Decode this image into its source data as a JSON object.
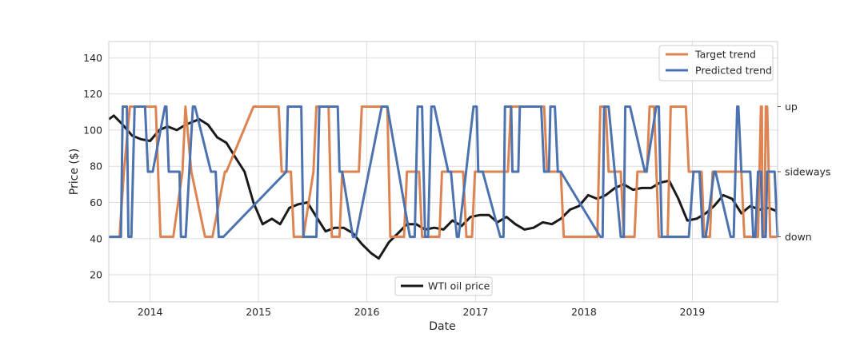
{
  "chart_data": {
    "type": "line",
    "title": "",
    "xlabel": "Date",
    "ylabel": "Price ($)",
    "xlim": [
      "2013-08-15",
      "2019-10-15"
    ],
    "ylim": [
      5,
      149
    ],
    "x_ticks": [
      "2014",
      "2015",
      "2016",
      "2017",
      "2018",
      "2019"
    ],
    "y_ticks": [
      20,
      40,
      60,
      80,
      100,
      120,
      140
    ],
    "secondary_y_ticks": [
      {
        "label": "up",
        "value": 113
      },
      {
        "label": "sideways",
        "value": 77
      },
      {
        "label": "down",
        "value": 41
      }
    ],
    "trend_levels": {
      "down": 41,
      "sideways": 77,
      "up": 113
    },
    "grid": true,
    "legends": [
      {
        "placement": "top-right",
        "entries": [
          "Target trend",
          "Predicted trend"
        ]
      },
      {
        "placement": "bottom-center",
        "entries": [
          "WTI oil price"
        ]
      }
    ],
    "colors": {
      "target": "#dd8452",
      "predicted": "#4c72b0",
      "price": "#1a1a1a"
    },
    "series": [
      {
        "name": "WTI oil price",
        "x": [
          "2013-08-15",
          "2013-09-01",
          "2013-10-01",
          "2013-11-01",
          "2013-12-01",
          "2014-01-01",
          "2014-02-01",
          "2014-03-01",
          "2014-04-01",
          "2014-05-01",
          "2014-06-15",
          "2014-07-15",
          "2014-08-15",
          "2014-09-15",
          "2014-10-15",
          "2014-11-15",
          "2014-12-15",
          "2015-01-15",
          "2015-02-15",
          "2015-03-15",
          "2015-04-15",
          "2015-05-15",
          "2015-06-15",
          "2015-07-15",
          "2015-08-15",
          "2015-09-15",
          "2015-10-15",
          "2015-11-15",
          "2015-12-15",
          "2016-01-15",
          "2016-02-10",
          "2016-03-15",
          "2016-04-15",
          "2016-05-15",
          "2016-06-15",
          "2016-07-15",
          "2016-08-15",
          "2016-09-15",
          "2016-10-15",
          "2016-11-15",
          "2016-12-15",
          "2017-01-15",
          "2017-02-15",
          "2017-03-15",
          "2017-04-15",
          "2017-05-15",
          "2017-06-15",
          "2017-07-15",
          "2017-08-15",
          "2017-09-15",
          "2017-10-15",
          "2017-11-15",
          "2017-12-15",
          "2018-01-15",
          "2018-02-15",
          "2018-03-15",
          "2018-04-15",
          "2018-05-15",
          "2018-06-15",
          "2018-07-15",
          "2018-08-15",
          "2018-09-15",
          "2018-10-15",
          "2018-11-15",
          "2018-12-15",
          "2019-01-15",
          "2019-02-15",
          "2019-03-15",
          "2019-04-15",
          "2019-05-15",
          "2019-06-15",
          "2019-07-15",
          "2019-08-15",
          "2019-09-15",
          "2019-10-15"
        ],
        "y": [
          106,
          108,
          103,
          97,
          95,
          94,
          100,
          102,
          100,
          103,
          106,
          103,
          96,
          93,
          85,
          77,
          60,
          48,
          51,
          48,
          57,
          59,
          60,
          52,
          44,
          46,
          46,
          43,
          37,
          32,
          29,
          38,
          43,
          48,
          48,
          45,
          46,
          45,
          50,
          47,
          52,
          53,
          53,
          49,
          52,
          48,
          45,
          46,
          49,
          48,
          51,
          56,
          58,
          64,
          62,
          64,
          68,
          70,
          67,
          68,
          68,
          71,
          72,
          62,
          50,
          51,
          54,
          58,
          64,
          62,
          54,
          58,
          56,
          57,
          55
        ]
      },
      {
        "name": "Target trend",
        "x": [
          "2013-08-15",
          "2013-09-20",
          "2013-10-05",
          "2013-10-25",
          "2014-01-20",
          "2014-02-05",
          "2014-03-20",
          "2014-04-20",
          "2014-04-30",
          "2014-05-20",
          "2014-07-05",
          "2014-07-30",
          "2014-09-10",
          "2014-09-15",
          "2014-12-15",
          "2014-12-25",
          "2015-03-10",
          "2015-03-20",
          "2015-04-20",
          "2015-04-30",
          "2015-05-20",
          "2015-06-01",
          "2015-07-05",
          "2015-07-15",
          "2015-08-25",
          "2015-09-05",
          "2015-10-01",
          "2015-10-10",
          "2015-12-05",
          "2015-12-15",
          "2016-01-15",
          "2016-01-25",
          "2016-03-10",
          "2016-03-20",
          "2016-05-05",
          "2016-05-15",
          "2016-06-25",
          "2016-07-05",
          "2016-09-01",
          "2016-09-10",
          "2016-11-20",
          "2016-12-01",
          "2016-12-20",
          "2016-12-30",
          "2017-02-20",
          "2017-03-01",
          "2017-04-20",
          "2017-04-30",
          "2017-08-20",
          "2017-08-30",
          "2017-10-15",
          "2017-10-25",
          "2018-02-15",
          "2018-02-25",
          "2018-03-15",
          "2018-03-25",
          "2018-05-05",
          "2018-05-15",
          "2018-06-20",
          "2018-06-30",
          "2018-08-01",
          "2018-08-10",
          "2018-08-25",
          "2018-09-10",
          "2018-10-10",
          "2018-10-20",
          "2018-12-10",
          "2018-12-20",
          "2019-02-01",
          "2019-02-10",
          "2019-03-01",
          "2019-03-10",
          "2019-06-15",
          "2019-06-25",
          "2019-08-10",
          "2019-08-20",
          "2019-08-23",
          "2019-08-25",
          "2019-09-01",
          "2019-09-05",
          "2019-09-10",
          "2019-09-20",
          "2019-09-25",
          "2019-10-15"
        ],
        "y": [
          41,
          41,
          77,
          113,
          113,
          41,
          41,
          77,
          113,
          77,
          41,
          41,
          77,
          77,
          113,
          113,
          113,
          77,
          77,
          41,
          41,
          41,
          77,
          113,
          113,
          41,
          41,
          77,
          77,
          113,
          113,
          113,
          113,
          41,
          41,
          77,
          77,
          41,
          41,
          77,
          77,
          41,
          41,
          77,
          77,
          77,
          77,
          113,
          113,
          77,
          77,
          41,
          41,
          113,
          113,
          77,
          77,
          41,
          41,
          77,
          77,
          113,
          113,
          41,
          41,
          113,
          113,
          77,
          77,
          41,
          41,
          77,
          77,
          41,
          41,
          113,
          113,
          41,
          41,
          113,
          113,
          41,
          41,
          41
        ]
      },
      {
        "name": "Predicted trend",
        "x": [
          "2013-08-15",
          "2013-09-25",
          "2013-10-01",
          "2013-10-15",
          "2013-10-20",
          "2013-10-30",
          "2013-11-10",
          "2013-12-15",
          "2013-12-25",
          "2014-01-10",
          "2014-02-20",
          "2014-02-25",
          "2014-03-05",
          "2014-04-10",
          "2014-04-15",
          "2014-05-01",
          "2014-05-25",
          "2014-06-01",
          "2014-07-25",
          "2014-08-10",
          "2014-08-20",
          "2014-09-05",
          "2015-04-05",
          "2015-04-10",
          "2015-05-25",
          "2015-06-01",
          "2015-07-15",
          "2015-07-25",
          "2015-09-25",
          "2015-10-01",
          "2015-10-10",
          "2015-11-15",
          "2015-11-25",
          "2016-02-20",
          "2016-02-25",
          "2016-03-10",
          "2016-05-25",
          "2016-06-10",
          "2016-06-20",
          "2016-07-05",
          "2016-07-15",
          "2016-07-25",
          "2016-08-05",
          "2016-08-15",
          "2016-10-01",
          "2016-10-10",
          "2016-10-30",
          "2016-11-05",
          "2016-12-25",
          "2017-01-05",
          "2017-01-10",
          "2017-01-25",
          "2017-03-25",
          "2017-04-05",
          "2017-04-10",
          "2017-05-01",
          "2017-05-05",
          "2017-05-25",
          "2017-05-30",
          "2017-06-05",
          "2017-08-05",
          "2017-08-10",
          "2017-08-20",
          "2017-09-05",
          "2017-09-10",
          "2017-09-25",
          "2017-10-05",
          "2017-10-15",
          "2018-02-25",
          "2018-03-05",
          "2018-03-10",
          "2018-03-25",
          "2018-05-05",
          "2018-05-15",
          "2018-05-20",
          "2018-06-05",
          "2018-07-25",
          "2018-07-30",
          "2018-09-01",
          "2018-09-10",
          "2018-09-20",
          "2018-10-05",
          "2018-12-05",
          "2018-12-20",
          "2019-01-05",
          "2019-01-25",
          "2019-02-05",
          "2019-02-15",
          "2019-03-15",
          "2019-03-20",
          "2019-05-10",
          "2019-05-20",
          "2019-06-01",
          "2019-06-05",
          "2019-06-15",
          "2019-06-25",
          "2019-07-05",
          "2019-07-15",
          "2019-07-25",
          "2019-08-01",
          "2019-08-10",
          "2019-08-20",
          "2019-08-25",
          "2019-09-05",
          "2019-09-10",
          "2019-10-05",
          "2019-10-15"
        ],
        "y": [
          41,
          41,
          113,
          113,
          41,
          41,
          113,
          113,
          77,
          77,
          113,
          113,
          77,
          77,
          41,
          41,
          113,
          113,
          77,
          77,
          41,
          41,
          77,
          113,
          113,
          41,
          41,
          113,
          113,
          77,
          77,
          41,
          41,
          113,
          113,
          113,
          41,
          41,
          113,
          113,
          41,
          41,
          113,
          113,
          77,
          77,
          41,
          41,
          113,
          113,
          77,
          77,
          41,
          41,
          113,
          113,
          77,
          77,
          113,
          113,
          113,
          113,
          77,
          77,
          113,
          113,
          77,
          77,
          41,
          41,
          113,
          113,
          41,
          41,
          113,
          113,
          77,
          77,
          113,
          113,
          41,
          41,
          41,
          41,
          77,
          77,
          41,
          41,
          77,
          77,
          41,
          41,
          113,
          113,
          77,
          77,
          77,
          77,
          41,
          41,
          77,
          77,
          41,
          41,
          77,
          77,
          41
        ]
      }
    ]
  }
}
